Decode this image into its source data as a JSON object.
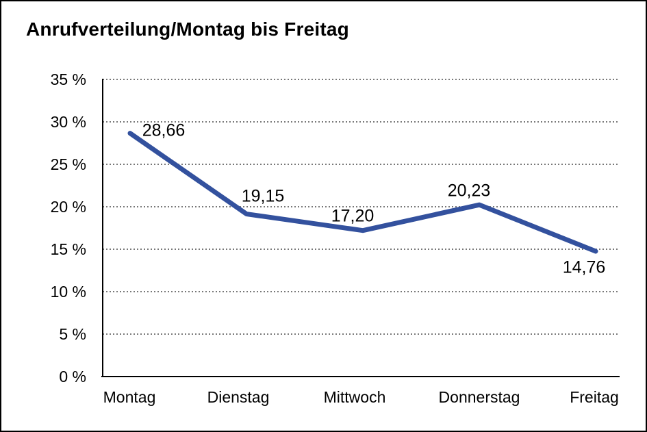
{
  "chart": {
    "title": "Anrufverteilung/Montag bis Freitag"
  },
  "chart_data": {
    "type": "line",
    "title": "Anrufverteilung/Montag bis Freitag",
    "categories": [
      "Montag",
      "Dienstag",
      "Mittwoch",
      "Donnerstag",
      "Freitag"
    ],
    "values": [
      28.66,
      19.15,
      17.2,
      20.23,
      14.76
    ],
    "point_labels": [
      "28,66",
      "19,15",
      "17,20",
      "20,23",
      "14,76"
    ],
    "xlabel": "",
    "ylabel": "",
    "ylim": [
      0,
      35
    ],
    "ytick_step": 5,
    "ytick_labels": [
      "0 %",
      "5 %",
      "10 %",
      "15 %",
      "20 %",
      "25 %",
      "30 %",
      "35 %"
    ],
    "grid": "horizontal-dotted",
    "legend": "none",
    "line_color": "#33519E",
    "axis_color": "#000000",
    "gridline_color": "#787878"
  }
}
